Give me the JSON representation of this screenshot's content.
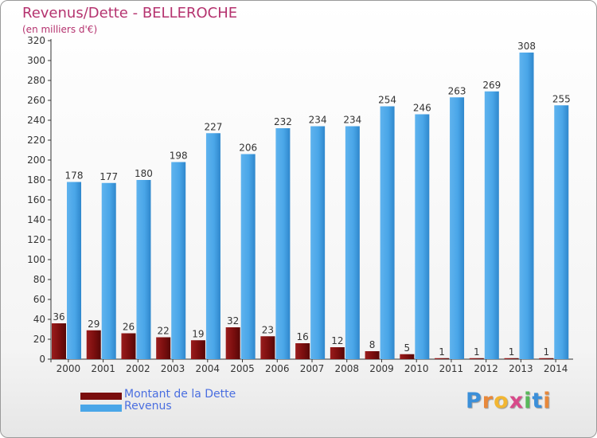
{
  "colors": {
    "dette": "#7a0e0e",
    "revenus": "#4aa6e8",
    "title": "#b5336f",
    "legend_text": "#4a6ee0"
  },
  "logo": {
    "letters": [
      "P",
      "r",
      "o",
      "x",
      "i",
      "t",
      "i"
    ],
    "colors": [
      "#3b8fd9",
      "#e8883a",
      "#f2b632",
      "#d84a8a",
      "#58b85a",
      "#3b8fd9",
      "#e8883a"
    ]
  },
  "chart_data": {
    "type": "bar",
    "title": "Revenus/Dette - BELLEROCHE",
    "subtitle": "(en milliers d'€)",
    "xlabel": "",
    "ylabel": "",
    "ylim": [
      0,
      320
    ],
    "yticks": [
      0,
      20,
      40,
      60,
      80,
      100,
      120,
      140,
      160,
      180,
      200,
      220,
      240,
      260,
      280,
      300,
      320
    ],
    "grid": false,
    "legend_position": "bottom-left",
    "categories": [
      "2000",
      "2001",
      "2002",
      "2003",
      "2004",
      "2005",
      "2006",
      "2007",
      "2008",
      "2009",
      "2010",
      "2011",
      "2012",
      "2013",
      "2014"
    ],
    "series": [
      {
        "name": "Montant de la Dette",
        "values": [
          36,
          29,
          26,
          22,
          19,
          32,
          23,
          16,
          12,
          8,
          5,
          1,
          1,
          1,
          1
        ]
      },
      {
        "name": "Revenus",
        "values": [
          178,
          177,
          180,
          198,
          227,
          206,
          232,
          234,
          234,
          254,
          246,
          263,
          269,
          308,
          255
        ]
      }
    ]
  }
}
